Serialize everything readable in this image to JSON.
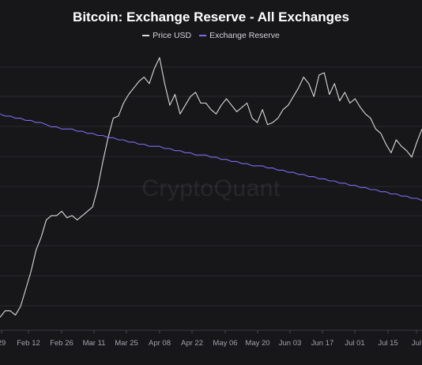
{
  "chart_data": {
    "type": "line",
    "title": "Bitcoin: Exchange Reserve - All Exchanges",
    "watermark": "CryptoQuant",
    "legend_position": "top-center",
    "grid": true,
    "x_tick_labels": [
      "29",
      "Feb 12",
      "Feb 26",
      "Mar 11",
      "Mar 25",
      "Apr 08",
      "Apr 22",
      "May 06",
      "May 20",
      "Jun 03",
      "Jun 17",
      "Jul 01",
      "Jul 15",
      "Jul"
    ],
    "x_start_date": "2024-01-29",
    "series": [
      {
        "name": "Price USD",
        "color": "#d9d9d9",
        "relative_level": [
          0.06,
          0.09,
          0.09,
          0.07,
          0.11,
          0.19,
          0.27,
          0.37,
          0.43,
          0.51,
          0.53,
          0.53,
          0.55,
          0.52,
          0.53,
          0.51,
          0.53,
          0.55,
          0.57,
          0.66,
          0.78,
          0.89,
          0.98,
          0.99,
          1.05,
          1.09,
          1.12,
          1.15,
          1.17,
          1.14,
          1.21,
          1.26,
          1.14,
          1.04,
          1.09,
          1.0,
          1.04,
          1.08,
          1.1,
          1.05,
          1.05,
          1.02,
          1.0,
          1.04,
          1.07,
          1.04,
          1.01,
          1.03,
          1.05,
          0.98,
          0.96,
          1.02,
          0.95,
          0.96,
          0.98,
          1.02,
          1.04,
          1.08,
          1.12,
          1.17,
          1.14,
          1.08,
          1.18,
          1.19,
          1.09,
          1.14,
          1.06,
          1.1,
          1.05,
          1.07,
          1.03,
          1.0,
          0.98,
          0.93,
          0.91,
          0.86,
          0.82,
          0.88,
          0.85,
          0.83,
          0.8,
          0.87,
          0.93
        ]
      },
      {
        "name": "Exchange Reserve",
        "color": "#7b6cf0",
        "relative_level": [
          1.0,
          0.99,
          0.99,
          0.98,
          0.98,
          0.97,
          0.97,
          0.96,
          0.96,
          0.95,
          0.94,
          0.94,
          0.93,
          0.93,
          0.93,
          0.92,
          0.92,
          0.91,
          0.91,
          0.9,
          0.9,
          0.89,
          0.89,
          0.88,
          0.88,
          0.87,
          0.87,
          0.86,
          0.86,
          0.85,
          0.85,
          0.85,
          0.84,
          0.84,
          0.83,
          0.83,
          0.82,
          0.82,
          0.81,
          0.81,
          0.81,
          0.8,
          0.8,
          0.79,
          0.79,
          0.78,
          0.78,
          0.77,
          0.77,
          0.76,
          0.76,
          0.76,
          0.75,
          0.75,
          0.74,
          0.74,
          0.73,
          0.73,
          0.72,
          0.72,
          0.71,
          0.71,
          0.7,
          0.7,
          0.69,
          0.69,
          0.68,
          0.68,
          0.67,
          0.67,
          0.66,
          0.66,
          0.65,
          0.65,
          0.64,
          0.64,
          0.63,
          0.63,
          0.62,
          0.62,
          0.61,
          0.61,
          0.6
        ]
      }
    ]
  }
}
